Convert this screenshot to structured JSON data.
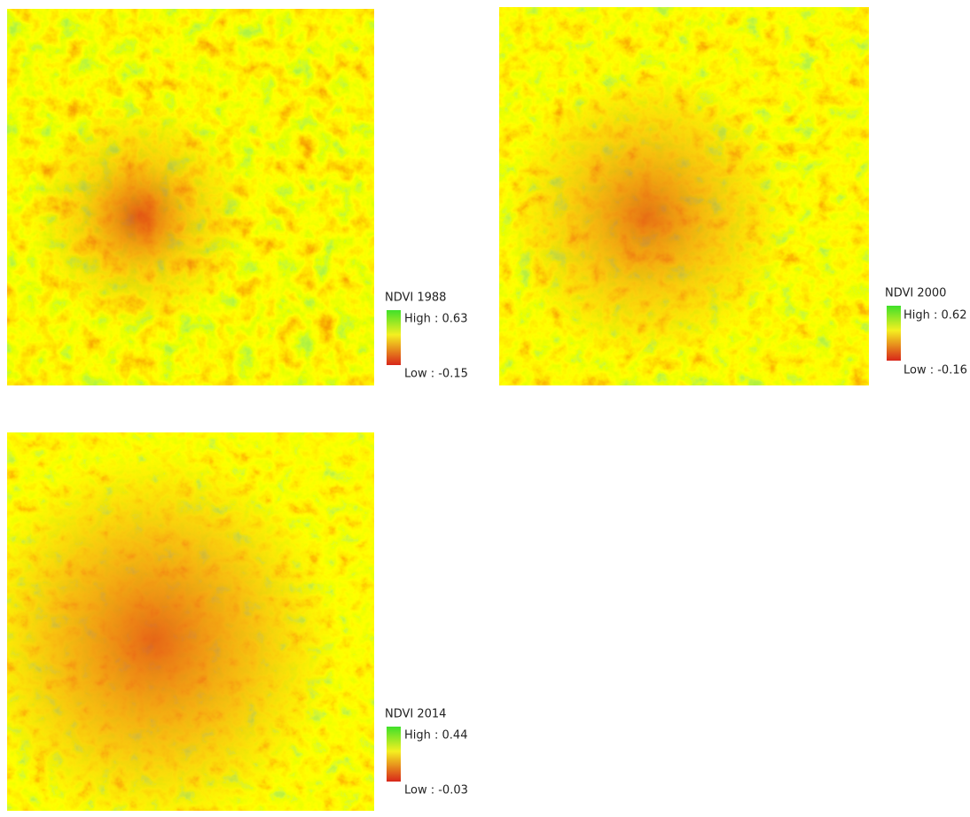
{
  "maps": [
    {
      "title": "NDVI 1988",
      "high": "High : 0.63",
      "low": "Low : -0.15"
    },
    {
      "title": "NDVI 2000",
      "high": "High : 0.62",
      "low": "Low : -0.16"
    },
    {
      "title": "NDVI 2014",
      "high": "High : 0.44",
      "low": "Low : -0.03"
    }
  ]
}
